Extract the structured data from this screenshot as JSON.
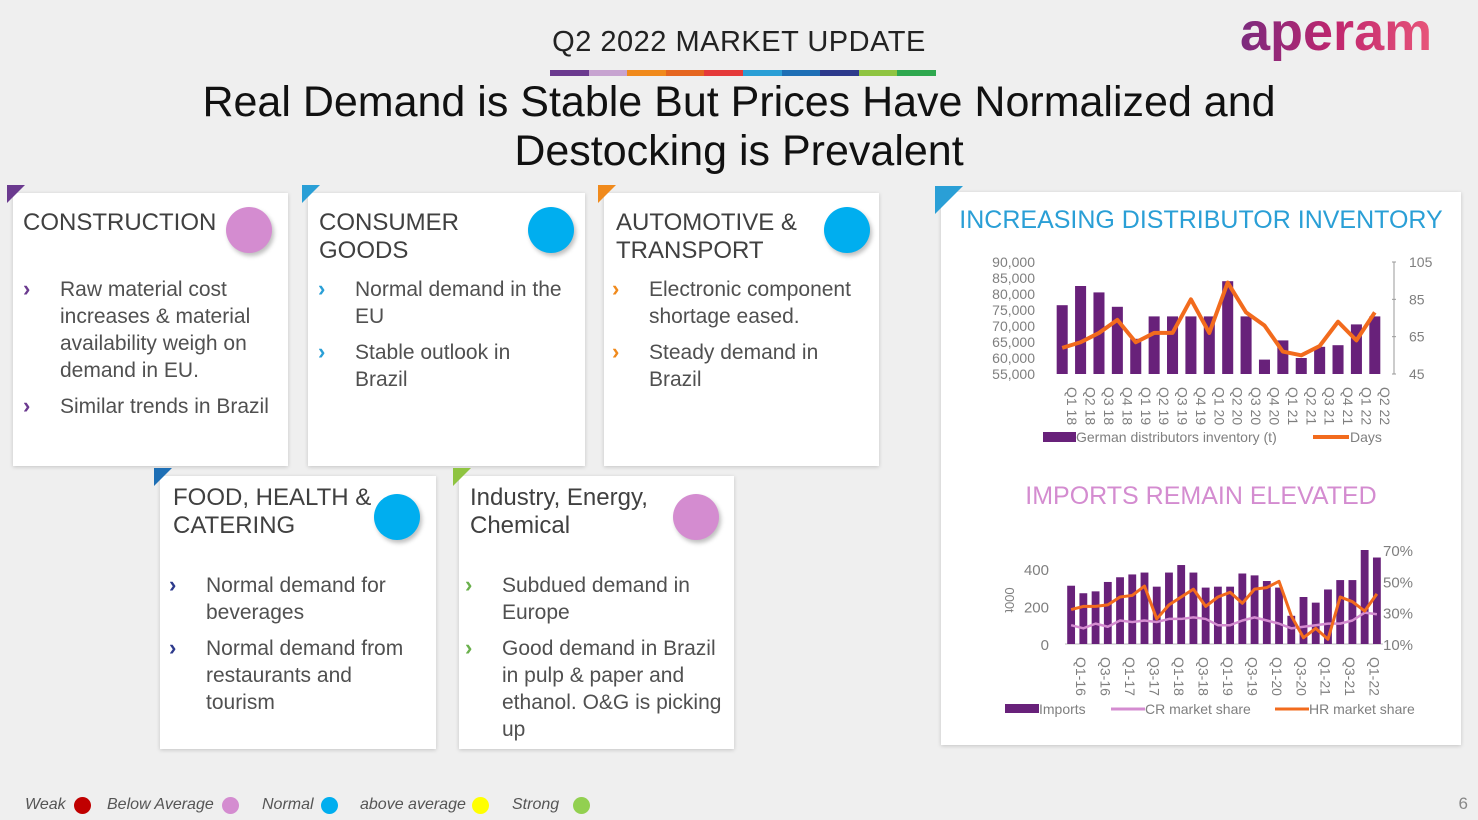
{
  "header": {
    "supertitle": "Q2 2022 MARKET UPDATE",
    "title_line1": "Real Demand is Stable But Prices Have Normalized and",
    "title_line2": "Destocking is Prevalent",
    "logo_text": "aperam",
    "stripe_colors": [
      "#6b3a8f",
      "#c7a3d0",
      "#f08a1c",
      "#e56620",
      "#e53a3a",
      "#2a9fd6",
      "#1e6fb5",
      "#2d3a8c",
      "#8fc441",
      "#2fa84f"
    ]
  },
  "cards": [
    {
      "title": "CONSTRUCTION",
      "dot_color": "#d48cd0",
      "corner_color": "#6b3a8f",
      "chevron_color": "#6b3a8f",
      "bullets": [
        "Raw material cost increases & material availability weigh on demand in EU.",
        "Similar trends in Brazil"
      ]
    },
    {
      "title": "CONSUMER GOODS",
      "dot_color": "#00aeef",
      "corner_color": "#2a9fd6",
      "chevron_color": "#2a9fd6",
      "bullets": [
        "Normal demand in the EU",
        "Stable outlook in Brazil"
      ]
    },
    {
      "title": "AUTOMOTIVE & TRANSPORT",
      "dot_color": "#00aeef",
      "corner_color": "#f08a1c",
      "chevron_color": "#f08a1c",
      "bullets": [
        "Electronic component shortage eased.",
        "Steady demand in Brazil"
      ]
    },
    {
      "title": "FOOD, HEALTH & CATERING",
      "dot_color": "#00aeef",
      "corner_color": "#1e6fb5",
      "chevron_color": "#2d3a8c",
      "bullets": [
        "Normal demand for beverages",
        "Normal demand from restaurants and tourism"
      ]
    },
    {
      "title": "Industry, Energy, Chemical",
      "dot_color": "#d48cd0",
      "corner_color": "#8fc441",
      "chevron_color": "#6ab04c",
      "bullets": [
        "Subdued demand in Europe",
        "Good demand in Brazil in pulp & paper and ethanol. O&G is picking up"
      ]
    }
  ],
  "chart_data": [
    {
      "type": "bar",
      "title": "INCREASING DISTRIBUTOR INVENTORY",
      "categories": [
        "Q1 18",
        "Q2 18",
        "Q3 18",
        "Q4 18",
        "Q1 19",
        "Q2 19",
        "Q3 19",
        "Q4 19",
        "Q1 20",
        "Q2 20",
        "Q3 20",
        "Q4 20",
        "Q1 21",
        "Q2 21",
        "Q3 21",
        "Q4 21",
        "Q1 22",
        "Q2 22"
      ],
      "series": [
        {
          "name": "German distributors inventory (t)",
          "axis": "left",
          "color": "#68217a",
          "values": [
            76500,
            82500,
            80500,
            76000,
            66000,
            73000,
            73000,
            73000,
            73000,
            84000,
            73000,
            59500,
            65500,
            60000,
            63500,
            64000,
            70500,
            73000
          ]
        },
        {
          "name": "Days",
          "axis": "right",
          "type": "line",
          "color": "#f26b1d",
          "values": [
            59,
            62,
            67,
            74,
            62,
            67,
            67,
            85,
            67,
            94,
            78,
            71,
            57,
            55,
            60,
            73,
            63,
            78
          ]
        }
      ],
      "ylim": [
        55000,
        90000
      ],
      "y_ticks": [
        "90,000",
        "85,000",
        "80,000",
        "75,000",
        "70,000",
        "65,000",
        "60,000",
        "55,000"
      ],
      "y2lim": [
        45,
        105
      ],
      "y2_ticks": [
        "105",
        "85",
        "65",
        "45"
      ],
      "legend_position": "bottom"
    },
    {
      "type": "bar",
      "title": "IMPORTS REMAIN ELEVATED",
      "ylabel": "000t",
      "categories": [
        "Q1-16",
        "",
        "Q3-16",
        "",
        "Q1-17",
        "",
        "Q3-17",
        "",
        "Q1-18",
        "",
        "Q3-18",
        "",
        "Q1-19",
        "",
        "Q3-19",
        "",
        "Q1-20",
        "",
        "Q3-20",
        "",
        "Q1-21",
        "",
        "Q3-21",
        "",
        "Q1-22",
        ""
      ],
      "tick_labels": [
        "Q1-16",
        "Q3-16",
        "Q1-17",
        "Q3-17",
        "Q1-18",
        "Q3-18",
        "Q1-19",
        "Q3-19",
        "Q1-20",
        "Q3-20",
        "Q1-21",
        "Q3-21",
        "Q1-22"
      ],
      "series": [
        {
          "name": "Imports",
          "axis": "left",
          "color": "#68217a",
          "values": [
            310,
            270,
            280,
            330,
            355,
            370,
            380,
            305,
            380,
            420,
            380,
            300,
            305,
            305,
            375,
            365,
            335,
            300,
            150,
            250,
            220,
            290,
            340,
            340,
            500,
            460
          ]
        },
        {
          "name": "CR market share",
          "axis": "right",
          "type": "line",
          "color": "#d48cd0",
          "values": [
            22,
            20,
            23,
            21,
            25,
            24,
            25,
            24,
            26,
            26,
            27,
            26,
            22,
            22,
            25,
            27,
            25,
            23,
            20,
            21,
            22,
            23,
            23,
            25,
            30,
            29
          ]
        },
        {
          "name": "HR market share",
          "axis": "right",
          "type": "line",
          "color": "#f26b1d",
          "values": [
            32,
            34,
            34,
            35,
            40,
            41,
            47,
            26,
            35,
            40,
            45,
            34,
            40,
            43,
            36,
            45,
            46,
            50,
            28,
            14,
            20,
            13,
            40,
            37,
            31,
            42
          ]
        }
      ],
      "ylim": [
        0,
        500
      ],
      "y_ticks": [
        "400",
        "200",
        "0"
      ],
      "y2lim": [
        10,
        70
      ],
      "y2_ticks": [
        "70%",
        "50%",
        "30%",
        "10%"
      ],
      "legend_position": "bottom"
    }
  ],
  "footer": {
    "legend": [
      {
        "label": "Weak",
        "color": "#c00000"
      },
      {
        "label": "Below Average",
        "color": "#d48cd0"
      },
      {
        "label": "Normal",
        "color": "#00aeef"
      },
      {
        "label": "above average",
        "color": "#ffff00"
      },
      {
        "label": "Strong",
        "color": "#92d050"
      }
    ],
    "page_number": "6"
  }
}
